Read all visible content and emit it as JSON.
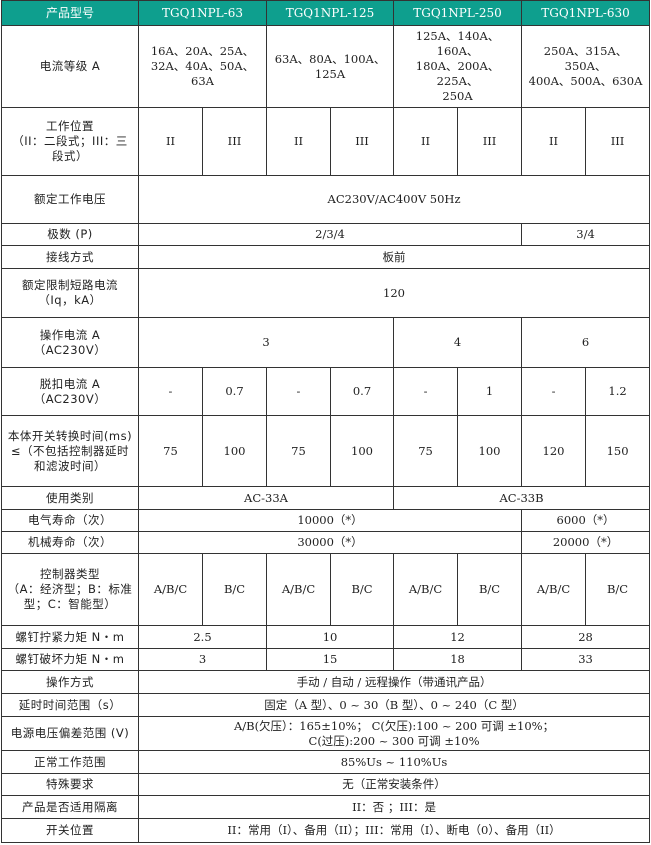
{
  "colors": {
    "header_bg": "#0e9f8e",
    "header_text": "#ffffff",
    "border": "#333333"
  },
  "header": [
    "产品型号",
    "TGQ1NPL-63",
    "TGQ1NPL-125",
    "TGQ1NPL-250",
    "TGQ1NPL-630"
  ],
  "rows": [
    {
      "label": "电流等级 A",
      "cells": [
        {
          "text": "16A、20A、25A、\n32A、40A、50A、63A",
          "span": 2
        },
        {
          "text": "63A、80A、100A、\n125A",
          "span": 2
        },
        {
          "text": "125A、140A、160A、\n180A、200A、225A、\n250A",
          "span": 2
        },
        {
          "text": "250A、315A、350A、\n400A、500A、630A",
          "span": 2
        }
      ]
    },
    {
      "label": "工作位置\n（II：二段式；III：三\n段式）",
      "cells": [
        {
          "text": "II",
          "span": 1
        },
        {
          "text": "III",
          "span": 1
        },
        {
          "text": "II",
          "span": 1
        },
        {
          "text": "III",
          "span": 1
        },
        {
          "text": "II",
          "span": 1
        },
        {
          "text": "III",
          "span": 1
        },
        {
          "text": "II",
          "span": 1
        },
        {
          "text": "III",
          "span": 1
        }
      ]
    },
    {
      "label": "额定工作电压",
      "cells": [
        {
          "text": "AC230V/AC400V 50Hz",
          "span": 8
        }
      ]
    },
    {
      "label": "极数 (P)",
      "cells": [
        {
          "text": "2/3/4",
          "span": 6
        },
        {
          "text": "3/4",
          "span": 2
        }
      ]
    },
    {
      "label": "接线方式",
      "cells": [
        {
          "text": "板前",
          "span": 8
        }
      ]
    },
    {
      "label": "额定限制短路电流\n（Iq，kA）",
      "cells": [
        {
          "text": "120",
          "span": 8
        }
      ]
    },
    {
      "label": "操作电流 A\n（AC230V）",
      "cells": [
        {
          "text": "3",
          "span": 4
        },
        {
          "text": "4",
          "span": 2
        },
        {
          "text": "6",
          "span": 2
        }
      ]
    },
    {
      "label": "脱扣电流 A\n（AC230V）",
      "cells": [
        {
          "text": "-",
          "span": 1
        },
        {
          "text": "0.7",
          "span": 1
        },
        {
          "text": "-",
          "span": 1
        },
        {
          "text": "0.7",
          "span": 1
        },
        {
          "text": "-",
          "span": 1
        },
        {
          "text": "1",
          "span": 1
        },
        {
          "text": "-",
          "span": 1
        },
        {
          "text": "1.2",
          "span": 1
        }
      ]
    },
    {
      "label": "本体开关转换时间(ms)\n≤（不包括控制器延时\n和滤波时间）",
      "cells": [
        {
          "text": "75",
          "span": 1
        },
        {
          "text": "100",
          "span": 1
        },
        {
          "text": "75",
          "span": 1
        },
        {
          "text": "100",
          "span": 1
        },
        {
          "text": "75",
          "span": 1
        },
        {
          "text": "100",
          "span": 1
        },
        {
          "text": "120",
          "span": 1
        },
        {
          "text": "150",
          "span": 1
        }
      ]
    },
    {
      "label": "使用类别",
      "cells": [
        {
          "text": "AC-33A",
          "span": 4
        },
        {
          "text": "AC-33B",
          "span": 4
        }
      ]
    },
    {
      "label": "电气寿命（次）",
      "cells": [
        {
          "text": "10000（*）",
          "span": 6
        },
        {
          "text": "6000（*）",
          "span": 2
        }
      ]
    },
    {
      "label": "机械寿命（次）",
      "cells": [
        {
          "text": "30000（*）",
          "span": 6
        },
        {
          "text": "20000（*）",
          "span": 2
        }
      ]
    },
    {
      "label": "控制器类型\n（A：经济型；B：标准\n型；C：智能型）",
      "cells": [
        {
          "text": "A/B/C",
          "span": 1
        },
        {
          "text": "B/C",
          "span": 1
        },
        {
          "text": "A/B/C",
          "span": 1
        },
        {
          "text": "B/C",
          "span": 1
        },
        {
          "text": "A/B/C",
          "span": 1
        },
        {
          "text": "B/C",
          "span": 1
        },
        {
          "text": "A/B/C",
          "span": 1
        },
        {
          "text": "B/C",
          "span": 1
        }
      ]
    },
    {
      "label": "螺钉拧紧力矩 N・m",
      "cells": [
        {
          "text": "2.5",
          "span": 2
        },
        {
          "text": "10",
          "span": 2
        },
        {
          "text": "12",
          "span": 2
        },
        {
          "text": "28",
          "span": 2
        }
      ]
    },
    {
      "label": "螺钉破坏力矩 N・m",
      "cells": [
        {
          "text": "3",
          "span": 2
        },
        {
          "text": "15",
          "span": 2
        },
        {
          "text": "18",
          "span": 2
        },
        {
          "text": "33",
          "span": 2
        }
      ]
    },
    {
      "label": "操作方式",
      "cells": [
        {
          "text": "手动 / 自动 / 远程操作（带通讯产品）",
          "span": 8
        }
      ]
    },
    {
      "label": "延时时间范围（s）",
      "cells": [
        {
          "text": "固定（A 型）、0 ~ 30（B 型）、0 ~ 240（C 型）",
          "span": 8
        }
      ]
    },
    {
      "label": "电源电压偏差范围 (V)",
      "cells": [
        {
          "text": "A/B(欠压）：165±10%； C(欠压):100 ~ 200 可调 ±10%；\nC(过压):200 ~ 300 可调 ±10%",
          "span": 8
        }
      ]
    },
    {
      "label": "正常工作范围",
      "cells": [
        {
          "text": "85%Us ~ 110%Us",
          "span": 8
        }
      ]
    },
    {
      "label": "特殊要求",
      "cells": [
        {
          "text": "无（正常安装条件）",
          "span": 8
        }
      ]
    },
    {
      "label": "产品是否适用隔离",
      "cells": [
        {
          "text": "II：否 ；III：是",
          "span": 8
        }
      ]
    },
    {
      "label": "开关位置",
      "cells": [
        {
          "text": "II：常用（I）、备用（II）；III：常用（I）、断电（0）、备用（II）",
          "span": 8
        }
      ]
    }
  ]
}
